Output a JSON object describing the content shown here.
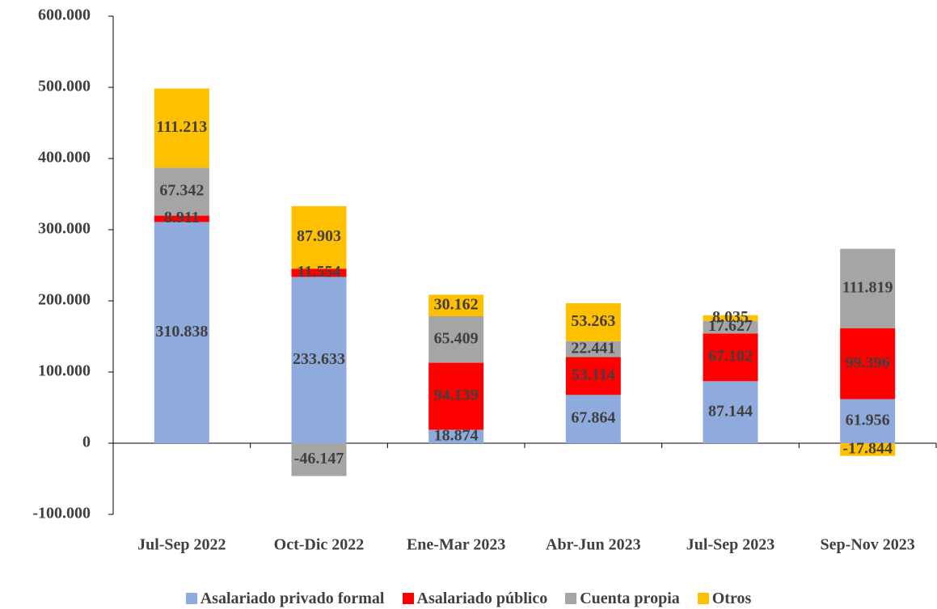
{
  "chart_data": {
    "type": "bar",
    "stacked": true,
    "categories": [
      "Jul-Sep 2022",
      "Oct-Dic 2022",
      "Ene-Mar 2023",
      "Abr-Jun 2023",
      "Jul-Sep 2023",
      "Sep-Nov 2023"
    ],
    "series": [
      {
        "name": "Asalariado privado formal",
        "color": "#8faadc",
        "values": [
          310838,
          233633,
          18874,
          67864,
          87144,
          61956
        ],
        "value_labels": [
          "310.838",
          "233.633",
          "18.874",
          "67.864",
          "87.144",
          "61.956"
        ]
      },
      {
        "name": "Asalariado público",
        "color": "#ff0000",
        "values": [
          8911,
          11554,
          94139,
          53114,
          67102,
          99396
        ],
        "value_labels": [
          "8.911",
          "11.554",
          "94.139",
          "53.114",
          "67.102",
          "99.396"
        ]
      },
      {
        "name": "Cuenta propia",
        "color": "#a5a5a5",
        "values": [
          67342,
          -46147,
          65409,
          22441,
          17627,
          111819
        ],
        "value_labels": [
          "67.342",
          "-46.147",
          "65.409",
          "22.441",
          "17.627",
          "111.819"
        ]
      },
      {
        "name": "Otros",
        "color": "#ffc000",
        "values": [
          111213,
          87903,
          30162,
          53263,
          8035,
          -17844
        ],
        "value_labels": [
          "111.213",
          "87.903",
          "30.162",
          "53.263",
          "8.035",
          "-17.844"
        ]
      }
    ],
    "ylim": [
      -100000,
      600000
    ],
    "yticks": [
      {
        "value": -100000,
        "label": "-100.000"
      },
      0,
      {
        "value": 100000,
        "label": "100.000"
      },
      {
        "value": 200000,
        "label": "200.000"
      },
      {
        "value": 300000,
        "label": "300.000"
      },
      {
        "value": 400000,
        "label": "400.000"
      },
      {
        "value": 500000,
        "label": "500.000"
      },
      {
        "value": 600000,
        "label": "600.000"
      }
    ],
    "legend": "bottom"
  }
}
